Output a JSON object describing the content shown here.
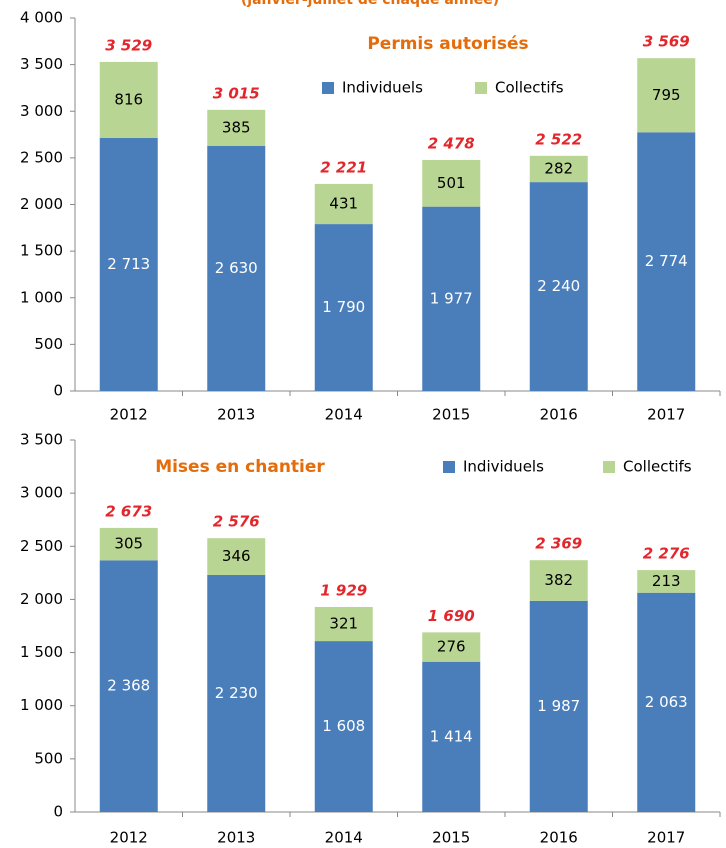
{
  "chart_data": [
    {
      "type": "bar",
      "stacked": true,
      "subtitle": "(janvier-juillet de chaque année)",
      "title": "Permis autorisés",
      "categories": [
        "2012",
        "2013",
        "2014",
        "2015",
        "2016",
        "2017"
      ],
      "series": [
        {
          "name": "Individuels",
          "color": "#4a7ebb",
          "values": [
            2713,
            2630,
            1790,
            1977,
            2240,
            2774
          ],
          "value_labels": [
            "2 713",
            "2 630",
            "1 790",
            "1 977",
            "2 240",
            "2 774"
          ]
        },
        {
          "name": "Collectifs",
          "color": "#b9d593",
          "values": [
            816,
            385,
            431,
            501,
            282,
            795
          ]
        }
      ],
      "totals": [
        3529,
        3015,
        2221,
        2478,
        2522,
        3569
      ],
      "total_labels": [
        "3 529",
        "3 015",
        "2 221",
        "2 478",
        "2 522",
        "3 569"
      ],
      "ylim": [
        0,
        4000
      ],
      "yticks": [
        0,
        500,
        {
          "value": 1000,
          "label": "1 000"
        },
        {
          "value": 1500,
          "label": "1 500"
        },
        {
          "value": 2000,
          "label": "2 000"
        },
        {
          "value": 2500,
          "label": "2 500"
        },
        {
          "value": 3000,
          "label": "3 000"
        },
        {
          "value": 3500,
          "label": "3 500"
        },
        {
          "value": 4000,
          "label": "4 000"
        }
      ],
      "grid": false
    },
    {
      "type": "bar",
      "stacked": true,
      "title": "Mises en chantier",
      "categories": [
        "2012",
        "2013",
        "2014",
        "2015",
        "2016",
        "2017"
      ],
      "series": [
        {
          "name": "Individuels",
          "color": "#4a7ebb",
          "values": [
            2368,
            2230,
            1608,
            1414,
            1987,
            2063
          ],
          "value_labels": [
            "2 368",
            "2 230",
            "1 608",
            "1 414",
            "1 987",
            "2 063"
          ]
        },
        {
          "name": "Collectifs",
          "color": "#b9d593",
          "values": [
            305,
            346,
            321,
            276,
            382,
            213
          ]
        }
      ],
      "totals": [
        2673,
        2576,
        1929,
        1690,
        2369,
        2276
      ],
      "total_labels": [
        "2 673",
        "2 576",
        "1 929",
        "1 690",
        "2 369",
        "2 276"
      ],
      "ylim": [
        0,
        3500
      ],
      "yticks": [
        0,
        500,
        {
          "value": 1000,
          "label": "1 000"
        },
        {
          "value": 1500,
          "label": "1 500"
        },
        {
          "value": 2000,
          "label": "2 000"
        },
        {
          "value": 2500,
          "label": "2 500"
        },
        {
          "value": 3000,
          "label": "3 000"
        },
        {
          "value": 3500,
          "label": "3 500"
        }
      ],
      "grid": false
    }
  ]
}
